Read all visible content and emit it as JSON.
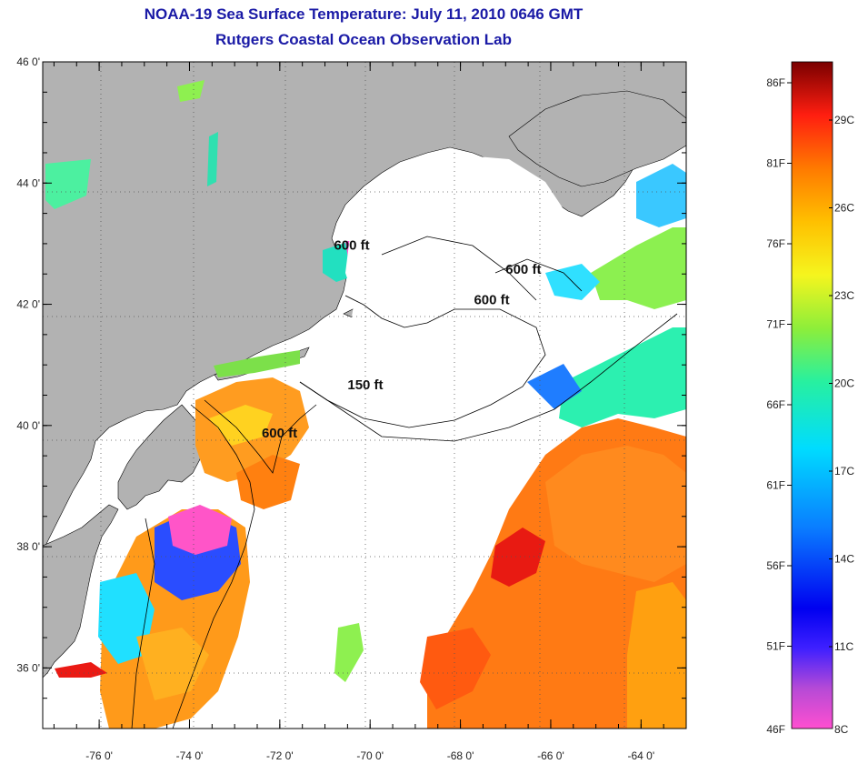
{
  "title_line1": "NOAA-19 Sea Surface Temperature:  July 11, 2010 0646 GMT",
  "title_line2": "Rutgers Coastal Ocean Observation Lab",
  "lat_ticks": [
    {
      "label": "46 0'",
      "value": 46
    },
    {
      "label": "44 0'",
      "value": 44
    },
    {
      "label": "42 0'",
      "value": 42
    },
    {
      "label": "40 0'",
      "value": 40
    },
    {
      "label": "38 0'",
      "value": 38
    },
    {
      "label": "36 0'",
      "value": 36
    }
  ],
  "lon_ticks": [
    {
      "label": "-76 0'",
      "value": -76
    },
    {
      "label": "-74 0'",
      "value": -74
    },
    {
      "label": "-72 0'",
      "value": -72
    },
    {
      "label": "-70 0'",
      "value": -70
    },
    {
      "label": "-68 0'",
      "value": -68
    },
    {
      "label": "-66 0'",
      "value": -66
    },
    {
      "label": "-64 0'",
      "value": -64
    }
  ],
  "isobaths": [
    {
      "label": "600 ft",
      "lon": -70.8,
      "lat": 42.9
    },
    {
      "label": "600 ft",
      "lon": -67.0,
      "lat": 42.5
    },
    {
      "label": "600 ft",
      "lon": -67.7,
      "lat": 42.0
    },
    {
      "label": "150 ft",
      "lon": -70.5,
      "lat": 40.6
    },
    {
      "label": "600 ft",
      "lon": -72.4,
      "lat": 39.8
    }
  ],
  "colorbar": {
    "fahrenheit": [
      "86F",
      "81F",
      "76F",
      "71F",
      "66F",
      "61F",
      "56F",
      "51F",
      "46F"
    ],
    "celsius": [
      "29C",
      "26C",
      "23C",
      "20C",
      "17C",
      "14C",
      "11C",
      "8C"
    ]
  },
  "colors": {
    "title": "#1a1aa6",
    "land": "#b2b2b2",
    "ocean_no_data": "#ffffff"
  }
}
